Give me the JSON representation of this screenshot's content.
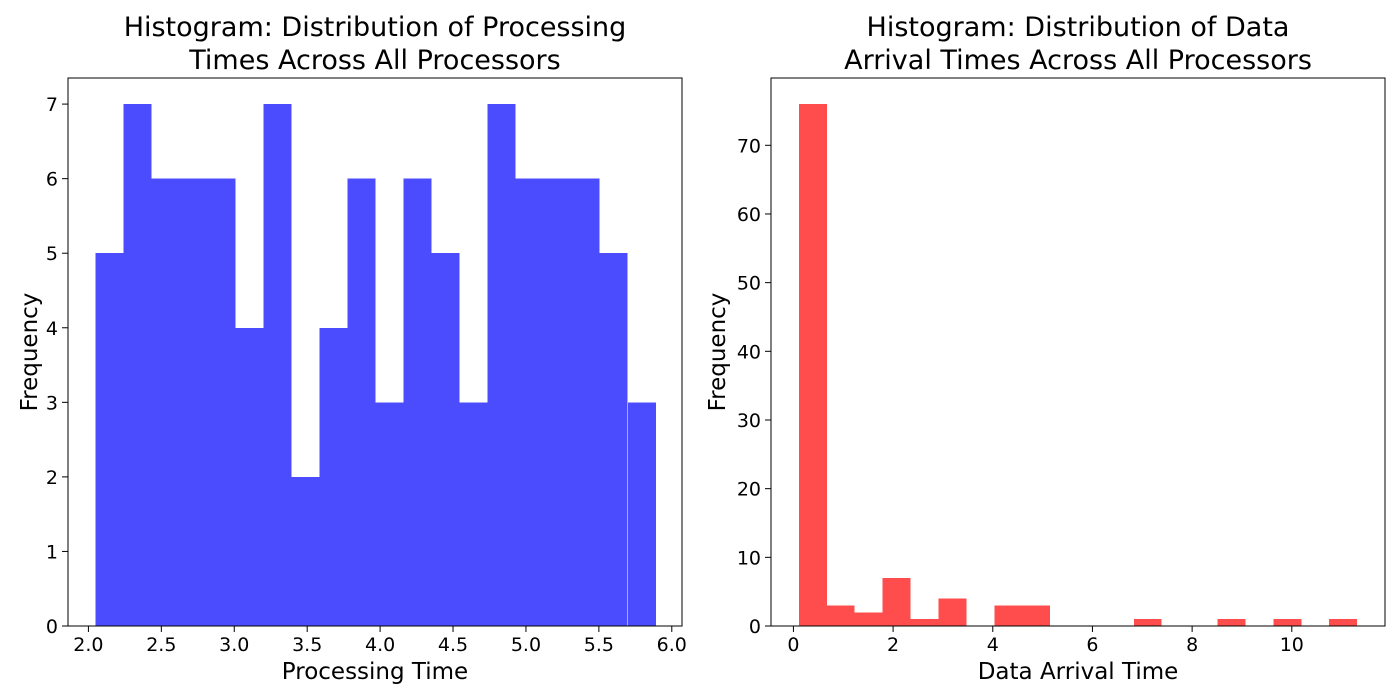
{
  "chart_data": [
    {
      "type": "bar",
      "title_lines": [
        "Histogram: Distribution of Processing",
        "Times Across All Processors"
      ],
      "xlabel": "Processing Time",
      "ylabel": "Frequency",
      "color": "#4c4cff",
      "xlim": [
        1.86,
        6.07
      ],
      "ylim": [
        0,
        7.35
      ],
      "xticks": [
        2.0,
        2.5,
        3.0,
        3.5,
        4.0,
        4.5,
        5.0,
        5.5,
        6.0
      ],
      "xtick_labels": [
        "2.0",
        "2.5",
        "3.0",
        "3.5",
        "4.0",
        "4.5",
        "5.0",
        "5.5",
        "6.0"
      ],
      "yticks": [
        0,
        1,
        2,
        3,
        4,
        5,
        6,
        7
      ],
      "ytick_labels": [
        "0",
        "1",
        "2",
        "3",
        "4",
        "5",
        "6",
        "7"
      ],
      "bin_edges": [
        2.05,
        2.242,
        2.434,
        2.626,
        2.818,
        3.01,
        3.202,
        3.394,
        3.586,
        3.778,
        3.97,
        4.162,
        4.354,
        4.546,
        4.738,
        4.93,
        5.122,
        5.314,
        5.506,
        5.698,
        5.89
      ],
      "values": [
        5,
        7,
        6,
        6,
        6,
        4,
        7,
        2,
        4,
        6,
        3,
        6,
        5,
        3,
        7,
        6,
        6,
        6,
        5,
        3
      ],
      "grid": false
    },
    {
      "type": "bar",
      "title_lines": [
        "Histogram: Distribution of Data",
        "Arrival Times Across All Processors"
      ],
      "xlabel": "Data Arrival Time",
      "ylabel": "Frequency",
      "color": "#ff4c4c",
      "xlim": [
        -0.45,
        11.87
      ],
      "ylim": [
        0,
        79.8
      ],
      "xticks": [
        0,
        2,
        4,
        6,
        8,
        10
      ],
      "xtick_labels": [
        "0",
        "2",
        "4",
        "6",
        "8",
        "10"
      ],
      "yticks": [
        0,
        10,
        20,
        30,
        40,
        50,
        60,
        70
      ],
      "ytick_labels": [
        "0",
        "10",
        "20",
        "30",
        "40",
        "50",
        "60",
        "70"
      ],
      "bin_edges": [
        0.11,
        0.67,
        1.23,
        1.79,
        2.35,
        2.91,
        3.47,
        4.03,
        4.59,
        5.15,
        5.71,
        6.27,
        6.83,
        7.39,
        7.95,
        8.51,
        9.07,
        9.63,
        10.19,
        10.75,
        11.31
      ],
      "values": [
        76,
        3,
        2,
        7,
        1,
        4,
        0,
        3,
        3,
        0,
        0,
        0,
        1,
        0,
        0,
        1,
        0,
        1,
        0,
        1
      ],
      "grid": false
    }
  ]
}
